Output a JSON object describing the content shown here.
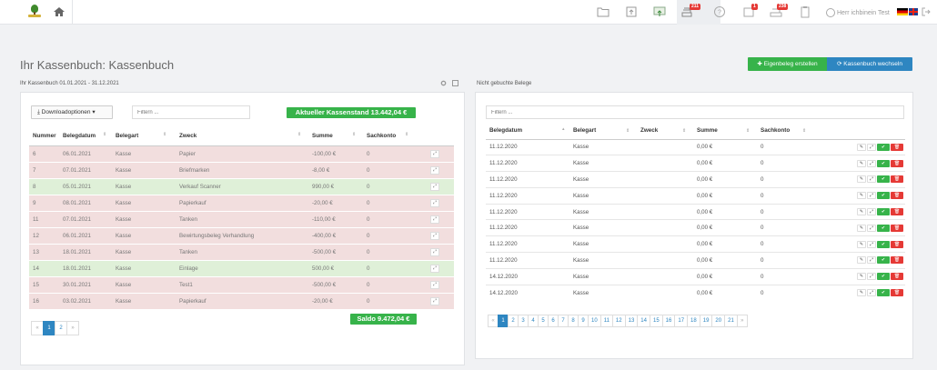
{
  "nav": {
    "user_name": "Herr ichbinein Test",
    "badges": {
      "beleg": "211",
      "tasks": "1",
      "inbox": "238"
    }
  },
  "header": {
    "title": "Ihr Kassenbuch: Kassenbuch",
    "btn_create": "✚ Eigenbeleg erstellen",
    "btn_switch": "⟳ Kassenbuch wechseln"
  },
  "left": {
    "subtitle": "Ihr Kassenbuch  01.01.2021 - 31.12.2021",
    "download_label": "⤓ Downloadoptionen ▾",
    "filter_placeholder": "Filtern ...",
    "balance_current": "Aktueller Kassenstand 13.442,04 €",
    "saldo": "Saldo 9.472,04 €",
    "columns": [
      "Nummer",
      "Belegdatum",
      "Belegart",
      "Zweck",
      "Summe",
      "Sachkonto"
    ],
    "rows": [
      {
        "nr": "6",
        "datum": "06.01.2021",
        "art": "Kasse",
        "zweck": "Papier",
        "summe": "-100,00 €",
        "konto": "0",
        "type": "red"
      },
      {
        "nr": "7",
        "datum": "07.01.2021",
        "art": "Kasse",
        "zweck": "Briefmarken",
        "summe": "-8,00 €",
        "konto": "0",
        "type": "red"
      },
      {
        "nr": "8",
        "datum": "05.01.2021",
        "art": "Kasse",
        "zweck": "Verkauf Scanner",
        "summe": "990,00 €",
        "konto": "0",
        "type": "green"
      },
      {
        "nr": "9",
        "datum": "08.01.2021",
        "art": "Kasse",
        "zweck": "Papierkauf",
        "summe": "-20,00 €",
        "konto": "0",
        "type": "red"
      },
      {
        "nr": "11",
        "datum": "07.01.2021",
        "art": "Kasse",
        "zweck": "Tanken",
        "summe": "-110,00 €",
        "konto": "0",
        "type": "red"
      },
      {
        "nr": "12",
        "datum": "06.01.2021",
        "art": "Kasse",
        "zweck": "Bewirtungsbeleg Verhandlung",
        "summe": "-400,00 €",
        "konto": "0",
        "type": "red"
      },
      {
        "nr": "13",
        "datum": "18.01.2021",
        "art": "Kasse",
        "zweck": "Tanken",
        "summe": "-500,00 €",
        "konto": "0",
        "type": "red"
      },
      {
        "nr": "14",
        "datum": "18.01.2021",
        "art": "Kasse",
        "zweck": "Einlage",
        "summe": "500,00 €",
        "konto": "0",
        "type": "green"
      },
      {
        "nr": "15",
        "datum": "30.01.2021",
        "art": "Kasse",
        "zweck": "Test1",
        "summe": "-500,00 €",
        "konto": "0",
        "type": "red"
      },
      {
        "nr": "16",
        "datum": "03.02.2021",
        "art": "Kasse",
        "zweck": "Papierkauf",
        "summe": "-20,00 €",
        "konto": "0",
        "type": "red"
      }
    ],
    "pager": [
      "«",
      "1",
      "2",
      "»"
    ],
    "pager_active": "1"
  },
  "right": {
    "subtitle": "Nicht gebuchte Belege",
    "filter_placeholder": "Filtern ...",
    "columns": [
      "Belegdatum",
      "Belegart",
      "Zweck",
      "Summe",
      "Sachkonto"
    ],
    "rows": [
      {
        "datum": "11.12.2020",
        "art": "Kasse",
        "zweck": "",
        "summe": "0,00 €",
        "konto": "0"
      },
      {
        "datum": "11.12.2020",
        "art": "Kasse",
        "zweck": "",
        "summe": "0,00 €",
        "konto": "0"
      },
      {
        "datum": "11.12.2020",
        "art": "Kasse",
        "zweck": "",
        "summe": "0,00 €",
        "konto": "0"
      },
      {
        "datum": "11.12.2020",
        "art": "Kasse",
        "zweck": "",
        "summe": "0,00 €",
        "konto": "0"
      },
      {
        "datum": "11.12.2020",
        "art": "Kasse",
        "zweck": "",
        "summe": "0,00 €",
        "konto": "0"
      },
      {
        "datum": "11.12.2020",
        "art": "Kasse",
        "zweck": "",
        "summe": "0,00 €",
        "konto": "0"
      },
      {
        "datum": "11.12.2020",
        "art": "Kasse",
        "zweck": "",
        "summe": "0,00 €",
        "konto": "0"
      },
      {
        "datum": "11.12.2020",
        "art": "Kasse",
        "zweck": "",
        "summe": "0,00 €",
        "konto": "0"
      },
      {
        "datum": "14.12.2020",
        "art": "Kasse",
        "zweck": "",
        "summe": "0,00 €",
        "konto": "0"
      },
      {
        "datum": "14.12.2020",
        "art": "Kasse",
        "zweck": "",
        "summe": "0,00 €",
        "konto": "0"
      }
    ],
    "pager": [
      "«",
      "1",
      "2",
      "3",
      "4",
      "5",
      "6",
      "7",
      "8",
      "9",
      "10",
      "11",
      "12",
      "13",
      "14",
      "15",
      "16",
      "17",
      "18",
      "19",
      "20",
      "21",
      "»"
    ],
    "pager_active": "1"
  },
  "colors": {
    "accent_green": "#37b34a",
    "accent_blue": "#2e86c1",
    "row_red": "#f2dede",
    "row_green": "#dff0d8",
    "danger": "#e53935"
  },
  "icons": {
    "row_actions": {
      "edit": "✎",
      "expand": "⤢",
      "confirm": "✔",
      "delete": "🗑"
    },
    "expand": "⤢"
  }
}
